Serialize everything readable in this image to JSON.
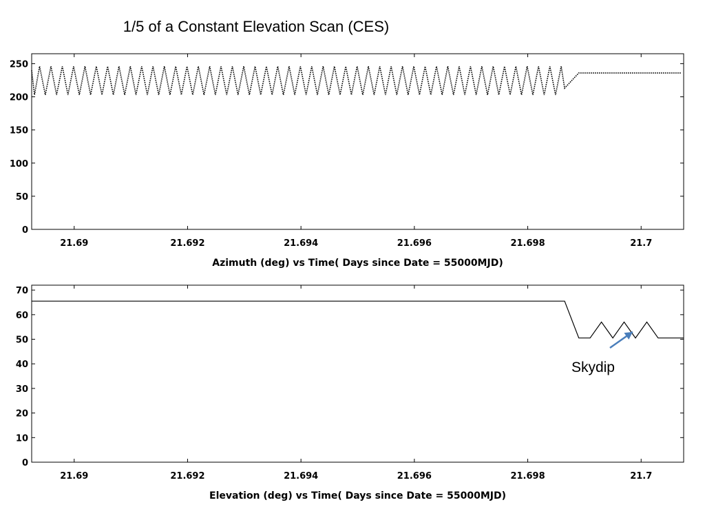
{
  "title": "1/5 of a Constant Elevation Scan (CES)",
  "chart_data": [
    {
      "type": "line",
      "title": "",
      "xlabel": "Azimuth (deg) vs Time( Days since Date = 55000MJD)",
      "ylabel": "",
      "xlim": [
        21.68925,
        21.70075
      ],
      "ylim": [
        0,
        265
      ],
      "x_ticks": [
        21.69,
        21.692,
        21.694,
        21.696,
        21.698,
        21.7
      ],
      "x_tick_labels": [
        "21.69",
        "21.692",
        "21.694",
        "21.696",
        "21.698",
        "21.7"
      ],
      "y_ticks": [
        0,
        50,
        100,
        150,
        200,
        250
      ],
      "y_tick_labels": [
        "0",
        "50",
        "100",
        "150",
        "200",
        "250"
      ],
      "grid": false,
      "series": [
        {
          "style": "dotted",
          "color": "#000000",
          "x": [
            21.68925,
            21.6893,
            21.68939,
            21.68949,
            21.68959,
            21.68969,
            21.68979,
            21.68989,
            21.68999,
            21.69009,
            21.69019,
            21.69029,
            21.69039,
            21.69049,
            21.69059,
            21.69069,
            21.69079,
            21.69089,
            21.69099,
            21.69109,
            21.69119,
            21.69129,
            21.69139,
            21.69149,
            21.69159,
            21.69169,
            21.69179,
            21.69189,
            21.69199,
            21.69209,
            21.69219,
            21.69229,
            21.69239,
            21.69249,
            21.69259,
            21.69269,
            21.69279,
            21.69289,
            21.69299,
            21.69309,
            21.69319,
            21.69329,
            21.69339,
            21.69349,
            21.69359,
            21.69369,
            21.69379,
            21.69389,
            21.69399,
            21.69409,
            21.69419,
            21.69429,
            21.69439,
            21.69449,
            21.69459,
            21.69469,
            21.69479,
            21.69489,
            21.69499,
            21.69509,
            21.69519,
            21.69529,
            21.69539,
            21.69549,
            21.69559,
            21.69569,
            21.69579,
            21.69589,
            21.69599,
            21.69609,
            21.69619,
            21.69629,
            21.69639,
            21.69649,
            21.69659,
            21.69669,
            21.69679,
            21.69689,
            21.69699,
            21.69709,
            21.69719,
            21.69729,
            21.69739,
            21.69749,
            21.69759,
            21.69769,
            21.69779,
            21.69789,
            21.69799,
            21.69809,
            21.69819,
            21.69829,
            21.69839,
            21.69849,
            21.69859,
            21.69865,
            21.6989,
            21.6999,
            21.7007
          ],
          "y": [
            240,
            203,
            246,
            203,
            246,
            203,
            246,
            203,
            246,
            203,
            246,
            203,
            246,
            203,
            246,
            203,
            246,
            203,
            246,
            203,
            246,
            203,
            246,
            203,
            246,
            203,
            246,
            203,
            246,
            203,
            246,
            203,
            246,
            203,
            246,
            203,
            246,
            203,
            246,
            203,
            246,
            203,
            246,
            203,
            246,
            203,
            246,
            203,
            246,
            203,
            246,
            203,
            246,
            203,
            246,
            203,
            246,
            203,
            246,
            203,
            246,
            203,
            246,
            203,
            246,
            203,
            246,
            203,
            246,
            203,
            246,
            203,
            246,
            203,
            246,
            203,
            246,
            203,
            246,
            203,
            246,
            203,
            246,
            203,
            246,
            203,
            246,
            203,
            246,
            203,
            246,
            203,
            246,
            203,
            246,
            213,
            236,
            236,
            236
          ]
        }
      ]
    },
    {
      "type": "line",
      "title": "",
      "xlabel": "Elevation (deg) vs Time( Days since Date = 55000MJD)",
      "ylabel": "",
      "xlim": [
        21.68925,
        21.70075
      ],
      "ylim": [
        0,
        72
      ],
      "x_ticks": [
        21.69,
        21.692,
        21.694,
        21.696,
        21.698,
        21.7
      ],
      "x_tick_labels": [
        "21.69",
        "21.692",
        "21.694",
        "21.696",
        "21.698",
        "21.7"
      ],
      "y_ticks": [
        0,
        10,
        20,
        30,
        40,
        50,
        60,
        70
      ],
      "y_tick_labels": [
        "0",
        "10",
        "20",
        "30",
        "40",
        "50",
        "60",
        "70"
      ],
      "grid": false,
      "series": [
        {
          "style": "solid",
          "color": "#000000",
          "x": [
            21.68925,
            21.69865,
            21.6989,
            21.6991,
            21.6993,
            21.6995,
            21.6997,
            21.6999,
            21.7001,
            21.7003,
            21.70075
          ],
          "y": [
            65.5,
            65.5,
            50.5,
            50.5,
            57,
            50.5,
            57,
            50.5,
            57,
            50.5,
            50.5
          ]
        }
      ],
      "annotation": {
        "text": "Skydip",
        "arrow_from": [
          21.69945,
          46.5
        ],
        "arrow_to": [
          21.69985,
          53
        ],
        "arrow_color": "#4a7ebb"
      }
    }
  ]
}
